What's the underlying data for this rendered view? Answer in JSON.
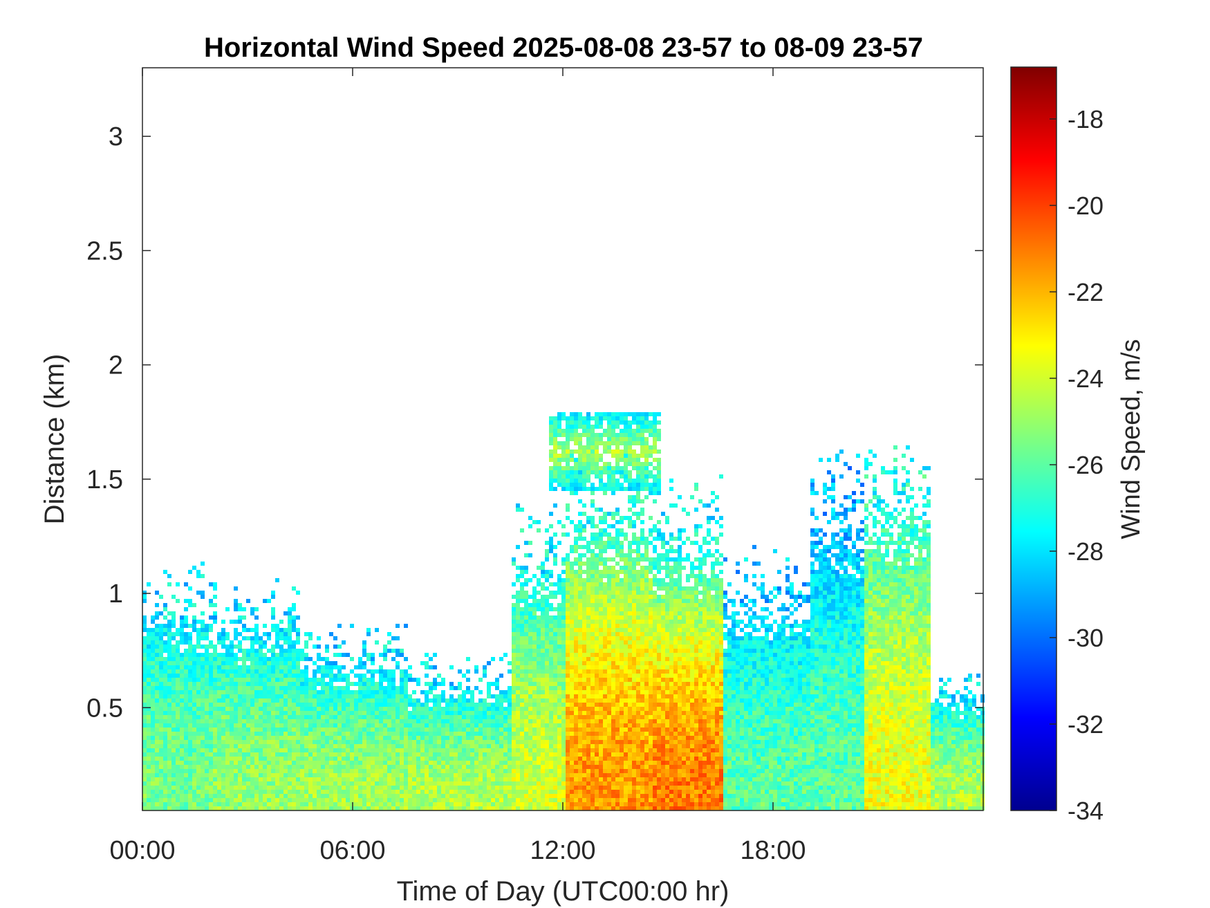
{
  "chart_data": {
    "type": "heatmap",
    "title": "Horizontal Wind Speed 2025-08-08 23-57 to 08-09 23-57",
    "xlabel": "Time of Day (UTC00:00 hr)",
    "ylabel": "Distance (km)",
    "x_unit": "hours",
    "xlim": [
      0,
      24
    ],
    "ylim": [
      0.05,
      3.3
    ],
    "x_ticks": [
      0,
      6,
      12,
      18
    ],
    "x_tick_labels": [
      "00:00",
      "06:00",
      "12:00",
      "18:00"
    ],
    "y_ticks": [
      0.5,
      1,
      1.5,
      2,
      2.5,
      3
    ],
    "y_tick_labels": [
      "0.5",
      "1",
      "1.5",
      "2",
      "2.5",
      "3"
    ],
    "colorbar": {
      "label": "Wind Speed, m/s",
      "colormap": "jet",
      "clim": [
        -34,
        -16.8
      ],
      "ticks": [
        -18,
        -20,
        -22,
        -24,
        -26,
        -28,
        -30,
        -32,
        -34
      ],
      "tick_labels": [
        "-18",
        "-20",
        "-22",
        "-24",
        "-26",
        "-28",
        "-30",
        "-32",
        "-34"
      ]
    },
    "grid": false,
    "regions": [
      {
        "x_range": [
          0,
          2.0
        ],
        "top_km": 0.9,
        "core_value": -25.5,
        "edge_value": -28
      },
      {
        "x_range": [
          2.0,
          4.5
        ],
        "top_km": 0.85,
        "core_value": -25.0,
        "edge_value": -28
      },
      {
        "x_range": [
          4.5,
          7.5
        ],
        "top_km": 0.7,
        "core_value": -24.8,
        "edge_value": -28
      },
      {
        "x_range": [
          7.5,
          10.5
        ],
        "top_km": 0.6,
        "core_value": -24.5,
        "edge_value": -28
      },
      {
        "x_range": [
          10.5,
          12
        ],
        "top_km": 1.1,
        "core_value": -24.0,
        "edge_value": -27.5
      },
      {
        "x_range": [
          12,
          14.5
        ],
        "top_km": 1.3,
        "core_value": -21.5,
        "edge_value": -27
      },
      {
        "x_range": [
          14.5,
          16.5
        ],
        "top_km": 1.2,
        "core_value": -21.0,
        "edge_value": -27.5
      },
      {
        "x_range": [
          16.5,
          19
        ],
        "top_km": 0.95,
        "core_value": -26.0,
        "edge_value": -28.5
      },
      {
        "x_range": [
          19,
          20.5
        ],
        "top_km": 1.3,
        "core_value": -26.0,
        "edge_value": -29
      },
      {
        "x_range": [
          20.5,
          22.5
        ],
        "top_km": 1.35,
        "core_value": -23.5,
        "edge_value": -27
      },
      {
        "x_range": [
          22.5,
          24
        ],
        "top_km": 0.55,
        "core_value": -24.5,
        "edge_value": -28
      }
    ],
    "cloud_layer": {
      "x_range": [
        11.5,
        14.8
      ],
      "y_range_km": [
        1.45,
        1.8
      ],
      "core_value": -24.5,
      "edge_value": -28
    }
  }
}
